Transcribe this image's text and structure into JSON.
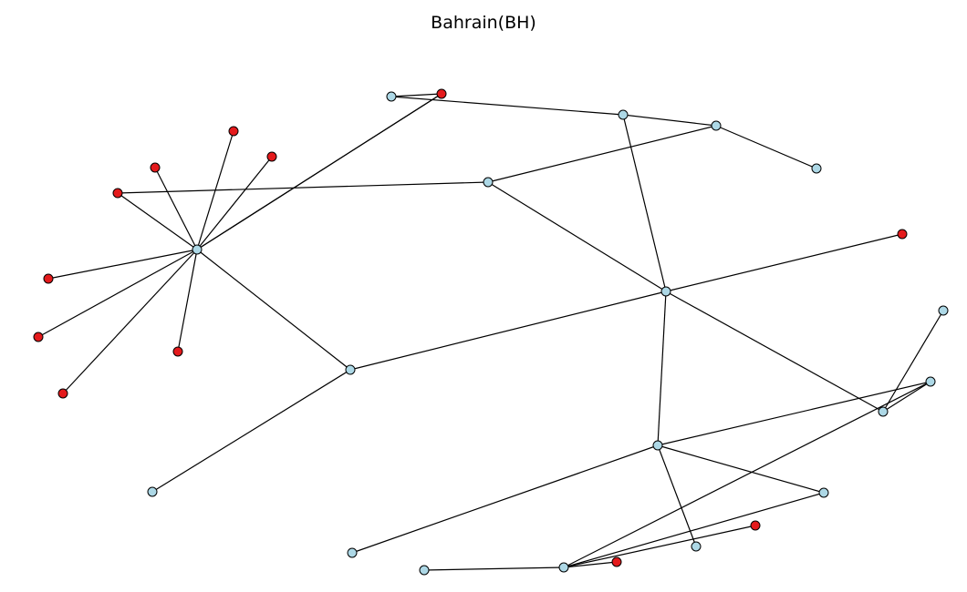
{
  "title": "Bahrain(BH)",
  "colors": {
    "node_light": "#add8e6",
    "node_red": "#e41a1c",
    "edge": "#000000",
    "node_stroke": "#000000"
  },
  "nodes": [
    {
      "id": "h1",
      "kind": "light"
    },
    {
      "id": "h2",
      "kind": "light"
    },
    {
      "id": "h3",
      "kind": "light"
    },
    {
      "id": "h4",
      "kind": "light"
    },
    {
      "id": "h5",
      "kind": "light"
    },
    {
      "id": "h6",
      "kind": "light"
    },
    {
      "id": "h7",
      "kind": "light"
    },
    {
      "id": "h8",
      "kind": "light"
    },
    {
      "id": "h9",
      "kind": "light"
    },
    {
      "id": "l1",
      "kind": "light"
    },
    {
      "id": "l2",
      "kind": "light"
    },
    {
      "id": "l3",
      "kind": "light"
    },
    {
      "id": "l4",
      "kind": "light"
    },
    {
      "id": "l5",
      "kind": "light"
    },
    {
      "id": "l6",
      "kind": "light"
    },
    {
      "id": "l7",
      "kind": "light"
    },
    {
      "id": "l8",
      "kind": "light"
    },
    {
      "id": "r1",
      "kind": "red"
    },
    {
      "id": "r2",
      "kind": "red"
    },
    {
      "id": "r3",
      "kind": "red"
    },
    {
      "id": "r4",
      "kind": "red"
    },
    {
      "id": "r5",
      "kind": "red"
    },
    {
      "id": "r6",
      "kind": "red"
    },
    {
      "id": "r7",
      "kind": "red"
    },
    {
      "id": "r8",
      "kind": "red"
    },
    {
      "id": "r9",
      "kind": "red"
    },
    {
      "id": "r10",
      "kind": "red"
    },
    {
      "id": "r11",
      "kind": "red"
    },
    {
      "id": "r12",
      "kind": "red"
    }
  ],
  "edges": [
    [
      "h1",
      "r1"
    ],
    [
      "h1",
      "r2"
    ],
    [
      "h1",
      "r3"
    ],
    [
      "h1",
      "r4"
    ],
    [
      "h1",
      "r5"
    ],
    [
      "h1",
      "r6"
    ],
    [
      "h1",
      "r7"
    ],
    [
      "h1",
      "r8"
    ],
    [
      "h1",
      "r9"
    ],
    [
      "h1",
      "h2"
    ],
    [
      "l1",
      "h3"
    ],
    [
      "h3",
      "h4"
    ],
    [
      "h3",
      "h5"
    ],
    [
      "r10",
      "h6"
    ],
    [
      "h6",
      "h4"
    ],
    [
      "h4",
      "l2"
    ],
    [
      "h6",
      "h5"
    ],
    [
      "h5",
      "r11"
    ],
    [
      "h5",
      "h2"
    ],
    [
      "h5",
      "h7"
    ],
    [
      "h5",
      "h8"
    ],
    [
      "h2",
      "l3"
    ],
    [
      "h8",
      "l4"
    ],
    [
      "h8",
      "h9"
    ],
    [
      "h8",
      "l5"
    ],
    [
      "h8",
      "l6"
    ],
    [
      "h7",
      "l7"
    ],
    [
      "h7",
      "h9"
    ],
    [
      "h9",
      "l8"
    ],
    [
      "l8",
      "r12"
    ],
    [
      "l8",
      "l6"
    ]
  ]
}
